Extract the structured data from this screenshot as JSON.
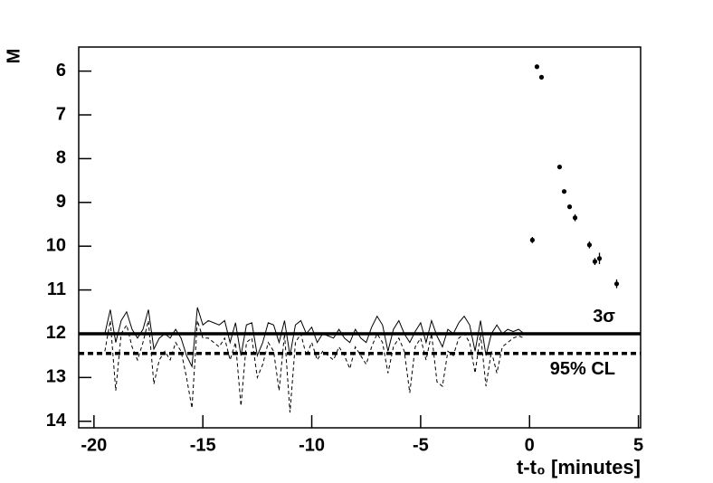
{
  "chart_data": {
    "type": "scatter",
    "ylabel": "M",
    "xlabel": "t-t₀ [minutes]",
    "xlim": [
      -20.7,
      5.1
    ],
    "ylim": [
      5.45,
      14.15
    ],
    "y_inverted": true,
    "xticks": [
      -20,
      -15,
      -10,
      -5,
      0,
      5
    ],
    "yticks": [
      6,
      7,
      8,
      9,
      10,
      11,
      12,
      13,
      14
    ],
    "series": [
      {
        "type": "errorbar",
        "color": "#000000",
        "x": [
          0.34,
          0.55,
          1.38,
          1.59,
          1.84,
          2.09,
          0.13,
          2.75,
          3.0,
          3.21,
          4.0
        ],
        "values": [
          5.9,
          6.14,
          8.19,
          8.75,
          9.1,
          9.35,
          9.86,
          9.97,
          10.35,
          10.28,
          10.86
        ],
        "errors": [
          0.02,
          0.02,
          0.03,
          0.04,
          0.05,
          0.08,
          0.07,
          0.08,
          0.08,
          0.13,
          0.1
        ]
      },
      {
        "type": "line",
        "color": "#000000",
        "dash": false,
        "x": [
          -19.5,
          -19.25,
          -19.0,
          -18.75,
          -18.5,
          -18.25,
          -18.0,
          -17.75,
          -17.5,
          -17.25,
          -17.0,
          -16.75,
          -16.5,
          -16.25,
          -16.0,
          -15.75,
          -15.5,
          -15.25,
          -15.0,
          -14.75,
          -14.5,
          -14.25,
          -14.0,
          -13.75,
          -13.5,
          -13.25,
          -13.0,
          -12.75,
          -12.5,
          -12.25,
          -12.0,
          -11.75,
          -11.5,
          -11.25,
          -11.0,
          -10.75,
          -10.5,
          -10.25,
          -10.0,
          -9.75,
          -9.5,
          -9.25,
          -9.0,
          -8.75,
          -8.5,
          -8.25,
          -8.0,
          -7.75,
          -7.5,
          -7.25,
          -7.0,
          -6.75,
          -6.5,
          -6.25,
          -6.0,
          -5.75,
          -5.5,
          -5.25,
          -5.0,
          -4.75,
          -4.5,
          -4.25,
          -4.0,
          -3.75,
          -3.5,
          -3.25,
          -3.0,
          -2.75,
          -2.5,
          -2.25,
          -2.0,
          -1.75,
          -1.5,
          -1.25,
          -1.0,
          -0.75,
          -0.5,
          -0.25
        ],
        "values": [
          12.0,
          11.45,
          12.2,
          11.7,
          11.5,
          11.9,
          12.1,
          11.9,
          11.45,
          12.35,
          12.1,
          12.0,
          12.1,
          11.9,
          12.1,
          12.5,
          12.75,
          11.4,
          11.8,
          11.7,
          11.75,
          11.8,
          11.7,
          12.2,
          11.75,
          12.5,
          11.8,
          11.75,
          12.5,
          12.2,
          11.75,
          11.8,
          12.2,
          11.7,
          12.5,
          11.8,
          11.7,
          12.0,
          11.85,
          12.2,
          12.0,
          12.05,
          12.1,
          11.9,
          12.1,
          12.2,
          11.9,
          12.1,
          12.2,
          11.85,
          11.6,
          11.8,
          12.4,
          11.9,
          11.7,
          12.0,
          12.2,
          11.95,
          11.75,
          12.2,
          11.7,
          12.05,
          12.3,
          11.9,
          12.0,
          11.75,
          11.6,
          11.8,
          12.4,
          11.7,
          12.5,
          12.0,
          11.8,
          12.0,
          11.9,
          11.95,
          11.9,
          12.0
        ]
      },
      {
        "type": "line",
        "color": "#000000",
        "dash": true,
        "x": [
          -19.5,
          -19.25,
          -19.0,
          -18.75,
          -18.5,
          -18.25,
          -18.0,
          -17.75,
          -17.5,
          -17.25,
          -17.0,
          -16.75,
          -16.5,
          -16.25,
          -16.0,
          -15.75,
          -15.5,
          -15.25,
          -15.0,
          -14.75,
          -14.5,
          -14.25,
          -14.0,
          -13.75,
          -13.5,
          -13.25,
          -13.0,
          -12.75,
          -12.5,
          -12.25,
          -12.0,
          -11.75,
          -11.5,
          -11.25,
          -11.0,
          -10.75,
          -10.5,
          -10.25,
          -10.0,
          -9.75,
          -9.5,
          -9.25,
          -9.0,
          -8.75,
          -8.5,
          -8.25,
          -8.0,
          -7.75,
          -7.5,
          -7.25,
          -7.0,
          -6.75,
          -6.5,
          -6.25,
          -6.0,
          -5.75,
          -5.5,
          -5.25,
          -5.0,
          -4.75,
          -4.5,
          -4.25,
          -4.0,
          -3.75,
          -3.5,
          -3.25,
          -3.0,
          -2.75,
          -2.5,
          -2.25,
          -2.0,
          -1.75,
          -1.5,
          -1.25,
          -1.0,
          -0.75,
          -0.5,
          -0.25
        ],
        "values": [
          12.4,
          11.7,
          13.3,
          12.0,
          11.8,
          12.3,
          12.6,
          12.2,
          11.7,
          13.15,
          12.6,
          12.4,
          12.6,
          12.2,
          12.4,
          13.0,
          13.7,
          11.7,
          12.1,
          12.1,
          12.2,
          12.3,
          12.1,
          12.6,
          12.2,
          13.65,
          12.2,
          12.1,
          13.0,
          12.7,
          12.2,
          12.4,
          13.3,
          12.0,
          13.8,
          12.2,
          12.0,
          12.5,
          12.2,
          12.6,
          12.4,
          12.5,
          12.6,
          12.3,
          12.5,
          12.8,
          12.3,
          12.5,
          12.7,
          12.3,
          12.0,
          12.2,
          12.9,
          12.3,
          12.1,
          12.4,
          13.35,
          12.3,
          12.1,
          12.6,
          12.0,
          13.1,
          13.2,
          12.4,
          12.5,
          12.1,
          12.0,
          12.2,
          12.9,
          12.0,
          13.2,
          12.4,
          12.9,
          12.3,
          12.2,
          12.1,
          12.05,
          12.1
        ]
      }
    ],
    "reference_lines": [
      {
        "value": 12.0,
        "label": "3σ",
        "dash": false
      },
      {
        "value": 12.45,
        "label": "95% CL",
        "dash": true
      }
    ]
  }
}
